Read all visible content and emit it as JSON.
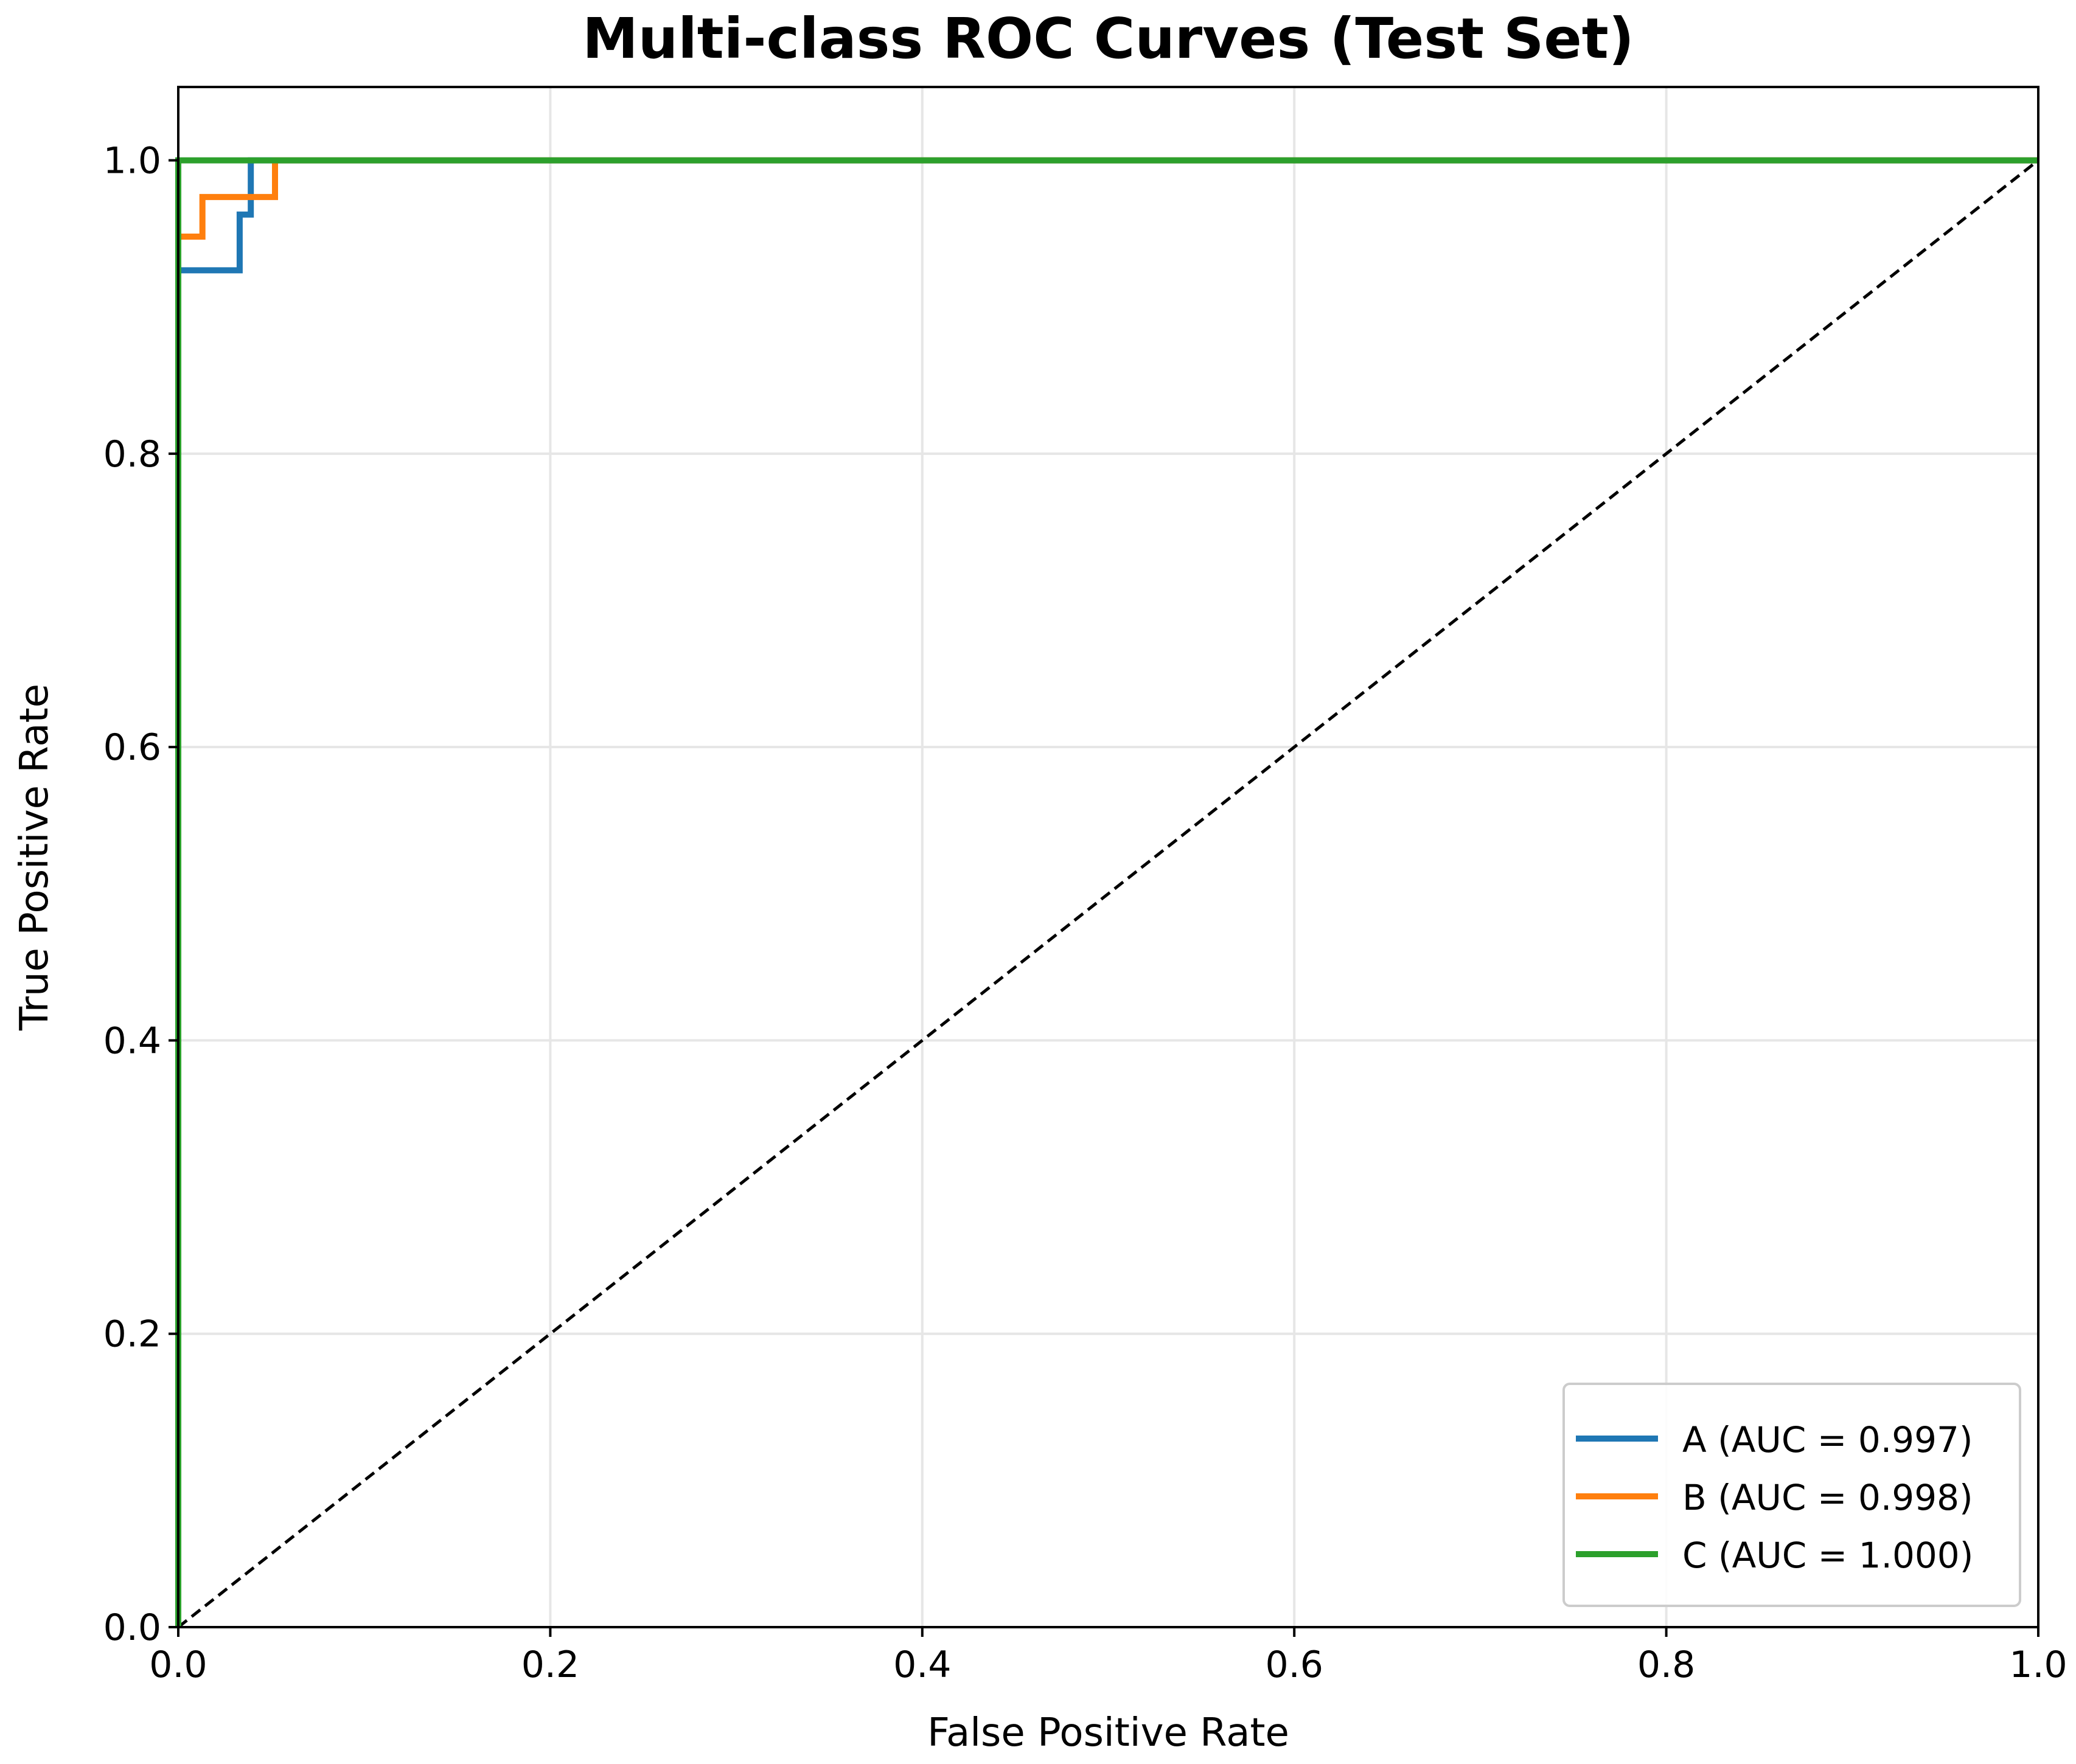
{
  "chart_data": {
    "type": "line",
    "title": "Multi-class ROC Curves (Test Set)",
    "xlabel": "False Positive Rate",
    "ylabel": "True Positive Rate",
    "xlim": [
      0.0,
      1.0
    ],
    "ylim": [
      0.0,
      1.05
    ],
    "x_ticks": [
      0.0,
      0.2,
      0.4,
      0.6,
      0.8,
      1.0
    ],
    "x_tick_labels": [
      "0.0",
      "0.2",
      "0.4",
      "0.6",
      "0.8",
      "1.0"
    ],
    "y_ticks": [
      0.0,
      0.2,
      0.4,
      0.6,
      0.8,
      1.0
    ],
    "y_tick_labels": [
      "0.0",
      "0.2",
      "0.4",
      "0.6",
      "0.8",
      "1.0"
    ],
    "grid": true,
    "legend_position": "lower-right",
    "series": [
      {
        "name": "A (AUC = 0.997)",
        "color": "#1f77b4",
        "x": [
          0.0,
          0.0,
          0.033,
          0.033,
          0.039,
          0.039,
          1.0
        ],
        "y": [
          0.0,
          0.925,
          0.925,
          0.963,
          0.963,
          1.0,
          1.0
        ]
      },
      {
        "name": "B (AUC = 0.998)",
        "color": "#ff7f0e",
        "x": [
          0.0,
          0.0,
          0.013,
          0.013,
          0.052,
          0.052,
          1.0
        ],
        "y": [
          0.0,
          0.948,
          0.948,
          0.975,
          0.975,
          1.0,
          1.0
        ]
      },
      {
        "name": "C (AUC = 1.000)",
        "color": "#2ca02c",
        "x": [
          0.0,
          0.0,
          1.0
        ],
        "y": [
          0.0,
          1.0,
          1.0
        ]
      }
    ],
    "reference_line": {
      "x": [
        0.0,
        1.0
      ],
      "y": [
        0.0,
        1.0
      ],
      "color": "#000000",
      "style": "dashed"
    }
  }
}
